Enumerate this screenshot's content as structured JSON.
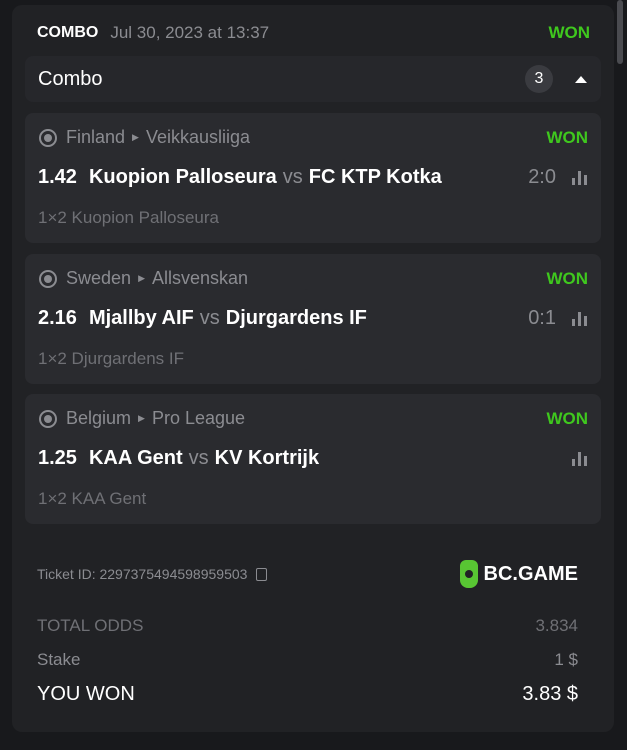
{
  "header": {
    "type": "COMBO",
    "date": "Jul 30, 2023 at 13:37",
    "status": "WON"
  },
  "combo": {
    "title": "Combo",
    "count": "3"
  },
  "selections": [
    {
      "country": "Finland",
      "league": "Veikkausliiga",
      "status": "WON",
      "odds": "1.42",
      "home": "Kuopion Palloseura",
      "vs": "vs",
      "away": "FC KTP Kotka",
      "score": "2:0",
      "market": "1×2 Kuopion Palloseura"
    },
    {
      "country": "Sweden",
      "league": "Allsvenskan",
      "status": "WON",
      "odds": "2.16",
      "home": "Mjallby AIF",
      "vs": "vs",
      "away": "Djurgardens IF",
      "score": "0:1",
      "market": "1×2 Djurgardens IF"
    },
    {
      "country": "Belgium",
      "league": "Pro League",
      "status": "WON",
      "odds": "1.25",
      "home": "KAA Gent",
      "vs": "vs",
      "away": "KV Kortrijk",
      "score": "",
      "market": "1×2 KAA Gent"
    }
  ],
  "ticket": {
    "label": "Ticket ID: 2297375494598959503"
  },
  "brand": {
    "name": "BC.GAME",
    "color": "#58c633"
  },
  "summary": {
    "total_odds_label": "TOTAL ODDS",
    "total_odds": "3.834",
    "stake_label": "Stake",
    "stake": "1 $",
    "won_label": "YOU WON",
    "won": "3.83 $"
  },
  "colors": {
    "won": "#3fc81e"
  }
}
